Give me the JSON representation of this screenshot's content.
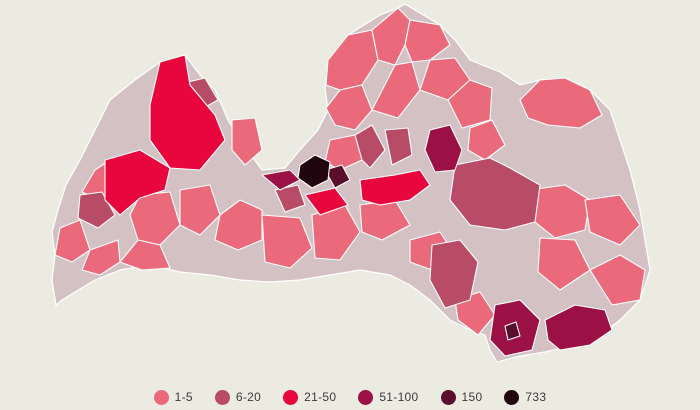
{
  "legend": [
    {
      "label": "1-5",
      "color": "#ea6a7c"
    },
    {
      "label": "6-20",
      "color": "#b84b66"
    },
    {
      "label": "21-50",
      "color": "#e8073d"
    },
    {
      "label": "51-100",
      "color": "#9c1145"
    },
    {
      "label": "150",
      "color": "#5a0f2c"
    },
    {
      "label": "733",
      "color": "#22060f"
    }
  ],
  "colors": {
    "background": "#ecebe2",
    "no_cases": "#d4c1c4",
    "border": "#ffffff"
  }
}
